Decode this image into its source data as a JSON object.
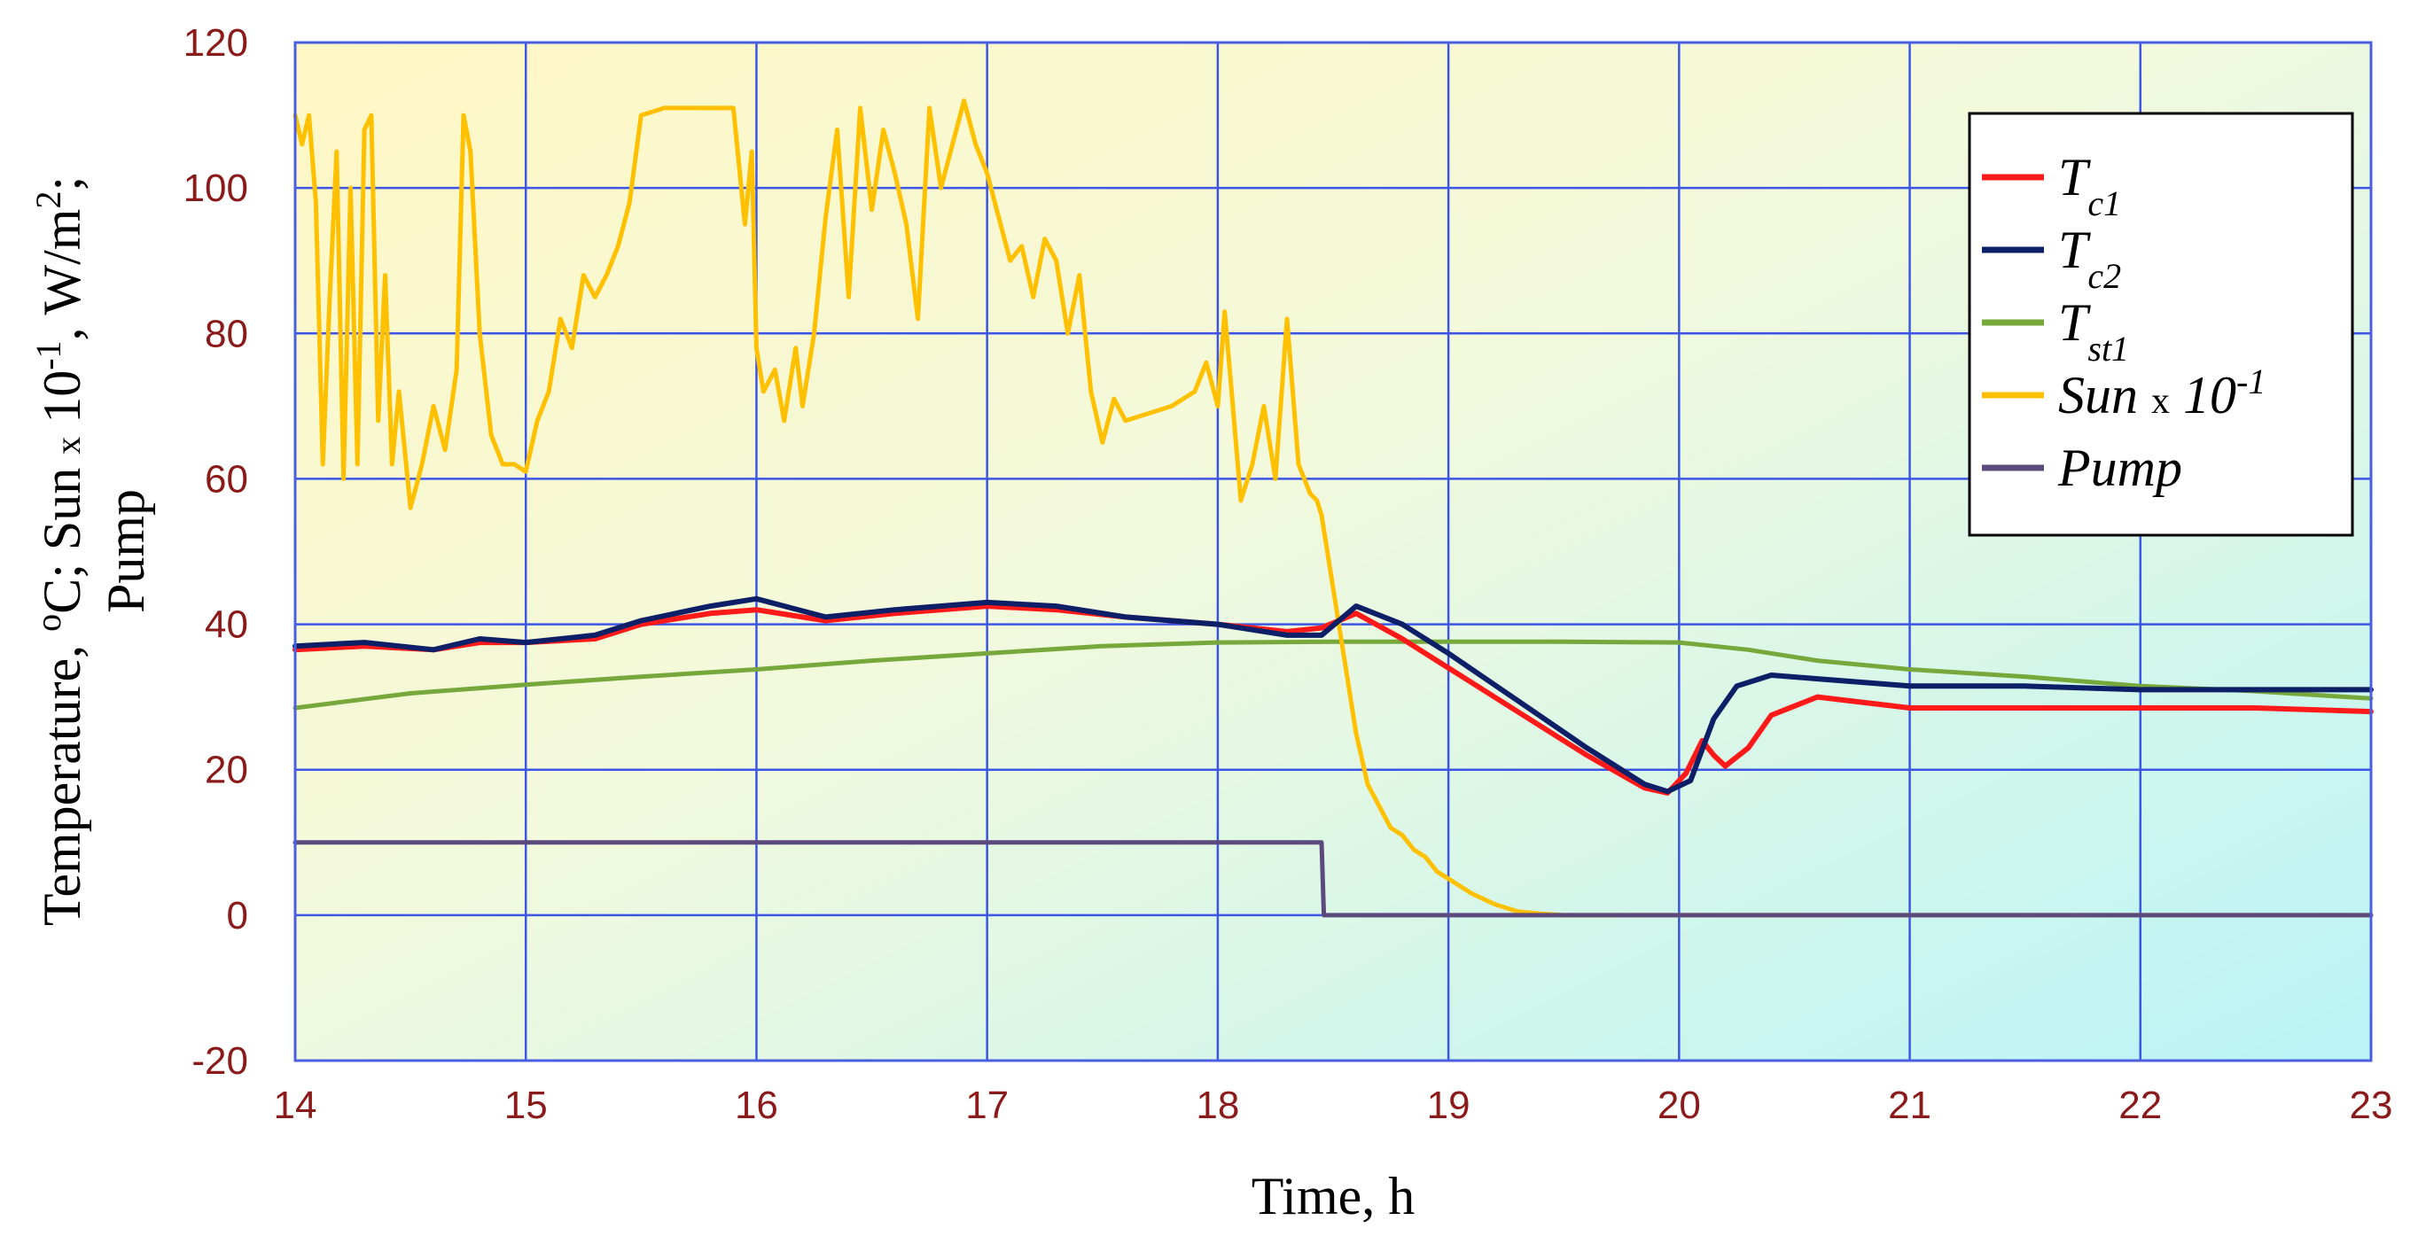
{
  "chart_data": {
    "type": "line",
    "xlabel": "Time, h",
    "ylabel": "Temperature, oC;  Sun x 10-1, W/m2; Pump",
    "ylabel_parts": {
      "line1_a": "Temperature, ",
      "line1_b": "o",
      "line1_c": "C;  Sun ",
      "line1_d": "x",
      "line1_e": " 10",
      "line1_f": "-1",
      "line1_g": ", W/m",
      "line1_h": "2",
      "line1_i": ";",
      "line2": "Pump"
    },
    "xlim": [
      14,
      23
    ],
    "ylim": [
      -20,
      120
    ],
    "x_ticks": [
      "14",
      "15",
      "16",
      "17",
      "18",
      "19",
      "20",
      "21",
      "22",
      "23"
    ],
    "y_ticks": [
      "120",
      "100",
      "80",
      "60",
      "40",
      "20",
      "0",
      "-20"
    ],
    "grid": true,
    "legend_position": "top-right",
    "legend": [
      {
        "base": "T",
        "sub": "c1",
        "x": "",
        "sup": ""
      },
      {
        "base": "T",
        "sub": "c2",
        "x": "",
        "sup": ""
      },
      {
        "base": "T",
        "sub": "st1",
        "x": "",
        "sup": ""
      },
      {
        "base": "Sun ",
        "sub": "",
        "x": "x",
        "sup_base": " 10",
        "sup": "-1"
      },
      {
        "base": "Pump",
        "sub": "",
        "x": "",
        "sup": ""
      }
    ],
    "colors": {
      "Tc1": "#ff1a1a",
      "Tc2": "#0d1f66",
      "Tst1": "#77a83c",
      "Sun": "#ffc000",
      "Pump": "#5c4a7e",
      "grid": "#3b55e6",
      "tick_text": "#8b1a1a"
    },
    "series": [
      {
        "key": "Tc1",
        "x": [
          14.0,
          14.3,
          14.6,
          14.8,
          15.0,
          15.3,
          15.5,
          15.8,
          16.0,
          16.3,
          16.6,
          17.0,
          17.3,
          17.6,
          18.0,
          18.3,
          18.45,
          18.6,
          18.8,
          19.0,
          19.3,
          19.6,
          19.85,
          19.95,
          20.03,
          20.1,
          20.15,
          20.2,
          20.3,
          20.4,
          20.6,
          21.0,
          21.5,
          22.0,
          22.5,
          23.0
        ],
        "y": [
          36.5,
          37,
          36.5,
          37.5,
          37.5,
          38,
          40,
          41.5,
          42,
          40.5,
          41.5,
          42.5,
          42,
          41,
          40,
          39,
          39.5,
          41.5,
          38,
          34,
          28,
          22,
          17.5,
          16.8,
          19.5,
          24,
          22,
          20.5,
          23,
          27.5,
          30,
          28.5,
          28.5,
          28.5,
          28.5,
          28
        ]
      },
      {
        "key": "Tc2",
        "x": [
          14.0,
          14.3,
          14.6,
          14.8,
          15.0,
          15.3,
          15.5,
          15.8,
          16.0,
          16.3,
          16.6,
          17.0,
          17.3,
          17.6,
          18.0,
          18.3,
          18.45,
          18.6,
          18.8,
          19.0,
          19.3,
          19.6,
          19.85,
          19.95,
          20.05,
          20.15,
          20.25,
          20.4,
          20.6,
          21.0,
          21.5,
          22.0,
          22.5,
          23.0
        ],
        "y": [
          37,
          37.5,
          36.5,
          38,
          37.5,
          38.5,
          40.5,
          42.5,
          43.5,
          41,
          42,
          43,
          42.5,
          41,
          40,
          38.5,
          38.5,
          42.5,
          40,
          36,
          29.5,
          23,
          18,
          17,
          18.5,
          27,
          31.5,
          33,
          32.5,
          31.5,
          31.5,
          31,
          31,
          31
        ]
      },
      {
        "key": "Tst1",
        "x": [
          14.0,
          14.5,
          15.0,
          15.5,
          16.0,
          16.5,
          17.0,
          17.5,
          18.0,
          18.5,
          19.0,
          19.5,
          20.0,
          20.3,
          20.6,
          21.0,
          21.5,
          22.0,
          22.5,
          23.0
        ],
        "y": [
          28.5,
          30.5,
          31.7,
          32.8,
          33.8,
          35,
          36,
          37,
          37.5,
          37.6,
          37.6,
          37.6,
          37.5,
          36.5,
          35,
          33.8,
          32.8,
          31.5,
          30.8,
          29.8
        ]
      },
      {
        "key": "Sun",
        "x": [
          14.0,
          14.03,
          14.06,
          14.09,
          14.12,
          14.15,
          14.18,
          14.21,
          14.24,
          14.27,
          14.3,
          14.33,
          14.36,
          14.39,
          14.42,
          14.45,
          14.5,
          14.55,
          14.6,
          14.65,
          14.7,
          14.73,
          14.76,
          14.8,
          14.85,
          14.9,
          14.95,
          15.0,
          15.05,
          15.1,
          15.15,
          15.2,
          15.25,
          15.3,
          15.35,
          15.4,
          15.45,
          15.5,
          15.6,
          15.7,
          15.8,
          15.9,
          15.95,
          15.98,
          16.0,
          16.03,
          16.08,
          16.12,
          16.17,
          16.2,
          16.25,
          16.3,
          16.35,
          16.4,
          16.45,
          16.5,
          16.55,
          16.6,
          16.65,
          16.7,
          16.75,
          16.8,
          16.9,
          16.95,
          17.0,
          17.05,
          17.1,
          17.15,
          17.2,
          17.25,
          17.3,
          17.35,
          17.4,
          17.45,
          17.5,
          17.55,
          17.6,
          17.7,
          17.8,
          17.9,
          17.95,
          18.0,
          18.03,
          18.06,
          18.1,
          18.15,
          18.2,
          18.25,
          18.3,
          18.35,
          18.4,
          18.43,
          18.45,
          18.5,
          18.55,
          18.6,
          18.65,
          18.7,
          18.75,
          18.8,
          18.85,
          18.9,
          18.95,
          19.0,
          19.1,
          19.2,
          19.3,
          19.4,
          19.5,
          19.6,
          19.8,
          20.0,
          21.0,
          22.0,
          23.0
        ],
        "y": [
          110,
          106,
          110,
          98,
          62,
          85,
          105,
          60,
          100,
          62,
          108,
          110,
          68,
          88,
          62,
          72,
          56,
          62,
          70,
          64,
          75,
          110,
          105,
          80,
          66,
          62,
          62,
          61,
          68,
          72,
          82,
          78,
          88,
          85,
          88,
          92,
          98,
          110,
          111,
          111,
          111,
          111,
          95,
          105,
          78,
          72,
          75,
          68,
          78,
          70,
          80,
          96,
          108,
          85,
          111,
          97,
          108,
          102,
          95,
          82,
          111,
          100,
          112,
          106,
          102,
          96,
          90,
          92,
          85,
          93,
          90,
          80,
          88,
          72,
          65,
          71,
          68,
          69,
          70,
          72,
          76,
          70,
          83,
          72,
          57,
          62,
          70,
          60,
          82,
          62,
          58,
          57,
          55,
          45,
          35,
          25,
          18,
          15,
          12,
          11,
          9,
          8,
          6,
          5,
          3,
          1.5,
          0.5,
          0.2,
          0,
          0,
          0,
          0,
          0,
          0,
          0
        ]
      },
      {
        "key": "Pump",
        "x": [
          14.0,
          18.45,
          18.46,
          23.0
        ],
        "y": [
          10,
          10,
          0,
          0
        ]
      }
    ]
  }
}
